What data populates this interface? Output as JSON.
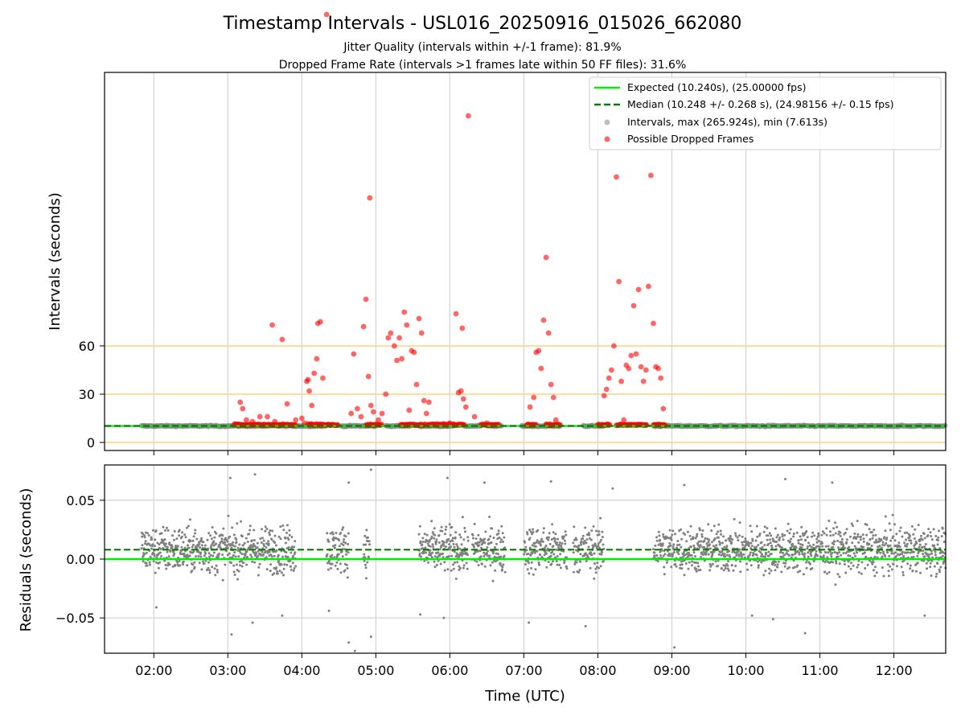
{
  "title": "Timestamp Intervals - USL016_20250916_015026_662080",
  "subtitle_1": "Jitter Quality (intervals within +/-1 frame): 81.9%",
  "subtitle_2": "Dropped Frame Rate (intervals >1 frames late within 50 FF files): 31.6%",
  "colors": {
    "expected": "#00ee00",
    "median": "#008000",
    "intervals": "#808080",
    "dropped": "#ff0000",
    "threshold": "#ffd27f",
    "grid": "#d3d3d3"
  },
  "chart_data": [
    {
      "type": "scatter",
      "name": "intervals-panel",
      "xlabel": "Time (UTC)",
      "ylabel": "Intervals (seconds)",
      "xlim": [
        "01:20",
        "12:42"
      ],
      "ylim": [
        -5,
        230
      ],
      "x_ticks": [
        "02:00",
        "03:00",
        "04:00",
        "05:00",
        "06:00",
        "07:00",
        "08:00",
        "09:00",
        "10:00",
        "11:00",
        "12:00"
      ],
      "y_ticks": [
        0,
        30,
        60
      ],
      "y_tick_labels": [
        "0",
        "30",
        "60"
      ],
      "threshold_lines": [
        0,
        30,
        60
      ],
      "grid": true,
      "legend_position": "upper right",
      "legend": [
        "Expected (10.240s), (25.00000 fps)",
        "Median (10.248 +/- 0.268 s), (24.98156 +/- 0.15 fps)",
        "Intervals, max (265.924s), min (7.613s)",
        "Possible Dropped Frames"
      ],
      "expected_interval": 10.24,
      "median_interval": 10.248,
      "interval_segments": [
        [
          "01:50",
          "04:20"
        ],
        [
          "04:32",
          "05:00"
        ],
        [
          "05:08",
          "05:28"
        ],
        [
          "05:35",
          "06:05"
        ],
        [
          "06:12",
          "06:25"
        ],
        [
          "06:30",
          "06:42"
        ],
        [
          "06:58",
          "07:30"
        ],
        [
          "07:48",
          "08:05"
        ],
        [
          "08:45",
          "12:42"
        ]
      ],
      "dropped_frames": [
        {
          "t": "03:10",
          "v": 25
        },
        {
          "t": "03:12",
          "v": 21
        },
        {
          "t": "03:15",
          "v": 14
        },
        {
          "t": "03:20",
          "v": 13
        },
        {
          "t": "03:26",
          "v": 16
        },
        {
          "t": "03:32",
          "v": 16
        },
        {
          "t": "03:38",
          "v": 13
        },
        {
          "t": "03:42",
          "v": 11
        },
        {
          "t": "03:36",
          "v": 73
        },
        {
          "t": "03:44",
          "v": 64
        },
        {
          "t": "03:48",
          "v": 24
        },
        {
          "t": "03:55",
          "v": 14
        },
        {
          "t": "04:00",
          "v": 15
        },
        {
          "t": "04:02",
          "v": 12
        },
        {
          "t": "04:04",
          "v": 38
        },
        {
          "t": "04:05",
          "v": 39
        },
        {
          "t": "04:06",
          "v": 32
        },
        {
          "t": "04:08",
          "v": 23
        },
        {
          "t": "04:10",
          "v": 43
        },
        {
          "t": "04:12",
          "v": 52
        },
        {
          "t": "04:13",
          "v": 74
        },
        {
          "t": "04:15",
          "v": 75
        },
        {
          "t": "04:17",
          "v": 40
        },
        {
          "t": "04:20",
          "v": 266
        },
        {
          "t": "04:40",
          "v": 18
        },
        {
          "t": "04:42",
          "v": 55
        },
        {
          "t": "04:45",
          "v": 21
        },
        {
          "t": "04:48",
          "v": 16
        },
        {
          "t": "04:50",
          "v": 72
        },
        {
          "t": "04:52",
          "v": 89
        },
        {
          "t": "04:54",
          "v": 41
        },
        {
          "t": "04:56",
          "v": 23
        },
        {
          "t": "04:58",
          "v": 19
        },
        {
          "t": "04:55",
          "v": 152
        },
        {
          "t": "05:02",
          "v": 14
        },
        {
          "t": "05:05",
          "v": 18
        },
        {
          "t": "05:08",
          "v": 30
        },
        {
          "t": "05:10",
          "v": 65
        },
        {
          "t": "05:12",
          "v": 68
        },
        {
          "t": "05:15",
          "v": 60
        },
        {
          "t": "05:17",
          "v": 51
        },
        {
          "t": "05:19",
          "v": 65
        },
        {
          "t": "05:21",
          "v": 52
        },
        {
          "t": "05:23",
          "v": 81
        },
        {
          "t": "05:25",
          "v": 73
        },
        {
          "t": "05:27",
          "v": 20
        },
        {
          "t": "05:29",
          "v": 57
        },
        {
          "t": "05:31",
          "v": 56
        },
        {
          "t": "05:33",
          "v": 36
        },
        {
          "t": "05:35",
          "v": 77
        },
        {
          "t": "05:37",
          "v": 68
        },
        {
          "t": "05:39",
          "v": 26
        },
        {
          "t": "05:41",
          "v": 18
        },
        {
          "t": "05:43",
          "v": 25
        },
        {
          "t": "06:00",
          "v": 12
        },
        {
          "t": "06:05",
          "v": 80
        },
        {
          "t": "06:07",
          "v": 31
        },
        {
          "t": "06:09",
          "v": 32
        },
        {
          "t": "06:11",
          "v": 27
        },
        {
          "t": "06:13",
          "v": 22
        },
        {
          "t": "06:10",
          "v": 71
        },
        {
          "t": "06:15",
          "v": 203
        },
        {
          "t": "06:20",
          "v": 16
        },
        {
          "t": "06:30",
          "v": 12
        },
        {
          "t": "07:05",
          "v": 22
        },
        {
          "t": "07:08",
          "v": 28
        },
        {
          "t": "07:10",
          "v": 56
        },
        {
          "t": "07:12",
          "v": 57
        },
        {
          "t": "07:14",
          "v": 46
        },
        {
          "t": "07:16",
          "v": 76
        },
        {
          "t": "07:18",
          "v": 115
        },
        {
          "t": "07:20",
          "v": 68
        },
        {
          "t": "07:22",
          "v": 36
        },
        {
          "t": "07:24",
          "v": 28
        },
        {
          "t": "07:26",
          "v": 14
        },
        {
          "t": "08:05",
          "v": 29
        },
        {
          "t": "08:07",
          "v": 33
        },
        {
          "t": "08:09",
          "v": 40
        },
        {
          "t": "08:11",
          "v": 45
        },
        {
          "t": "08:13",
          "v": 60
        },
        {
          "t": "08:15",
          "v": 165
        },
        {
          "t": "08:17",
          "v": 100
        },
        {
          "t": "08:19",
          "v": 38
        },
        {
          "t": "08:21",
          "v": 14
        },
        {
          "t": "08:23",
          "v": 48
        },
        {
          "t": "08:25",
          "v": 46
        },
        {
          "t": "08:27",
          "v": 54
        },
        {
          "t": "08:29",
          "v": 85
        },
        {
          "t": "08:31",
          "v": 55
        },
        {
          "t": "08:33",
          "v": 95
        },
        {
          "t": "08:35",
          "v": 47
        },
        {
          "t": "08:37",
          "v": 38
        },
        {
          "t": "08:39",
          "v": 45
        },
        {
          "t": "08:41",
          "v": 97
        },
        {
          "t": "08:43",
          "v": 166
        },
        {
          "t": "08:45",
          "v": 74
        },
        {
          "t": "08:47",
          "v": 47
        },
        {
          "t": "08:49",
          "v": 46
        },
        {
          "t": "08:51",
          "v": 40
        },
        {
          "t": "08:53",
          "v": 21
        }
      ],
      "dropped_bands": [
        [
          "03:05",
          "03:55"
        ],
        [
          "04:05",
          "04:18"
        ],
        [
          "04:18",
          "04:30"
        ],
        [
          "04:52",
          "05:05"
        ],
        [
          "05:20",
          "05:40"
        ],
        [
          "05:42",
          "06:00"
        ],
        [
          "06:02",
          "06:12"
        ],
        [
          "06:25",
          "06:40"
        ],
        [
          "07:02",
          "07:10"
        ],
        [
          "07:18",
          "07:30"
        ],
        [
          "08:00",
          "08:10"
        ],
        [
          "08:15",
          "08:40"
        ],
        [
          "08:45",
          "08:55"
        ]
      ]
    },
    {
      "type": "scatter",
      "name": "residuals-panel",
      "xlabel": "Time (UTC)",
      "ylabel": "Residuals (seconds)",
      "xlim": [
        "01:20",
        "12:42"
      ],
      "ylim": [
        -0.08,
        0.08
      ],
      "x_ticks": [
        "02:00",
        "03:00",
        "04:00",
        "05:00",
        "06:00",
        "07:00",
        "08:00",
        "09:00",
        "10:00",
        "11:00",
        "12:00"
      ],
      "y_ticks": [
        -0.05,
        0.0,
        0.05
      ],
      "y_tick_labels": [
        "−0.05",
        "0.00",
        "0.05"
      ],
      "grid": true,
      "expected_residual": 0.0,
      "median_residual": 0.008,
      "residual_segments": [
        [
          "01:50",
          "03:55"
        ],
        [
          "04:20",
          "04:38"
        ],
        [
          "04:50",
          "04:55"
        ],
        [
          "05:35",
          "06:15"
        ],
        [
          "06:18",
          "06:45"
        ],
        [
          "07:00",
          "07:35"
        ],
        [
          "07:40",
          "08:05"
        ],
        [
          "08:45",
          "12:42"
        ]
      ],
      "residual_outliers": [
        {
          "t": "02:02",
          "v": -0.041
        },
        {
          "t": "03:02",
          "v": 0.069
        },
        {
          "t": "03:03",
          "v": -0.064
        },
        {
          "t": "03:22",
          "v": 0.072
        },
        {
          "t": "03:20",
          "v": -0.054
        },
        {
          "t": "03:44",
          "v": -0.048
        },
        {
          "t": "04:22",
          "v": -0.044
        },
        {
          "t": "04:38",
          "v": 0.065
        },
        {
          "t": "04:38",
          "v": -0.071
        },
        {
          "t": "04:43",
          "v": -0.078
        },
        {
          "t": "04:56",
          "v": 0.076
        },
        {
          "t": "04:56",
          "v": -0.066
        },
        {
          "t": "05:36",
          "v": -0.047
        },
        {
          "t": "05:55",
          "v": -0.05
        },
        {
          "t": "05:58",
          "v": 0.069
        },
        {
          "t": "06:28",
          "v": 0.065
        },
        {
          "t": "07:04",
          "v": -0.054
        },
        {
          "t": "07:22",
          "v": 0.066
        },
        {
          "t": "07:50",
          "v": -0.057
        },
        {
          "t": "08:12",
          "v": 0.06
        },
        {
          "t": "09:02",
          "v": -0.075
        },
        {
          "t": "09:10",
          "v": 0.063
        },
        {
          "t": "10:05",
          "v": -0.048
        },
        {
          "t": "10:22",
          "v": -0.051
        },
        {
          "t": "10:32",
          "v": 0.068
        },
        {
          "t": "10:48",
          "v": -0.063
        },
        {
          "t": "11:10",
          "v": 0.065
        },
        {
          "t": "12:25",
          "v": -0.048
        }
      ]
    }
  ]
}
